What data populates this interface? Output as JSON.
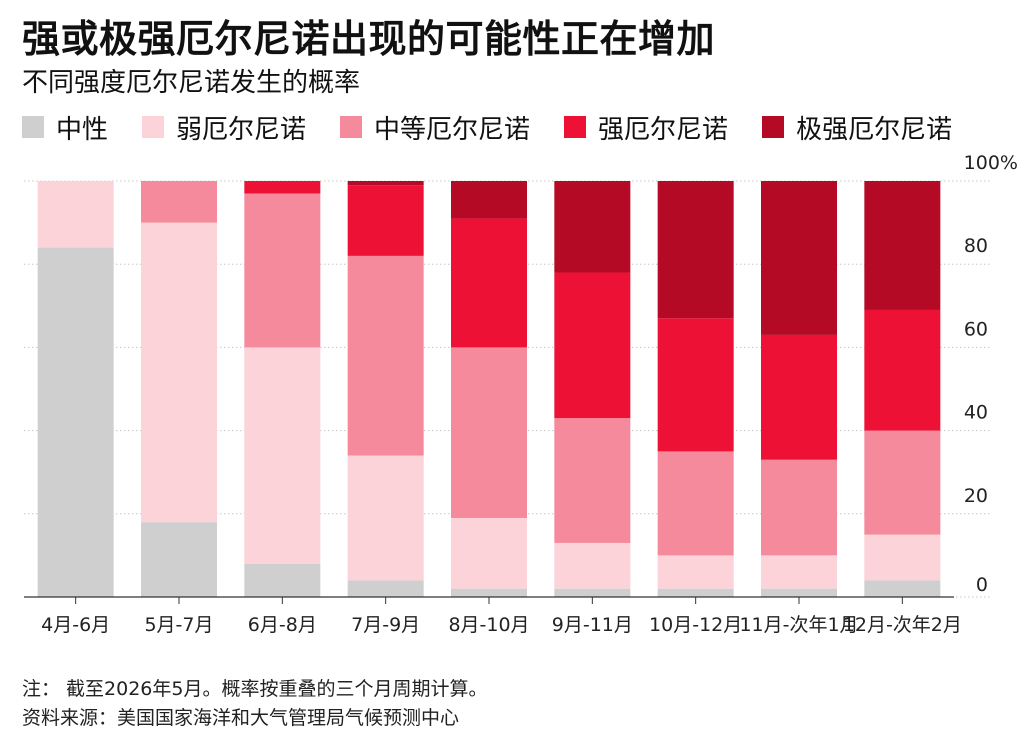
{
  "title": "强或极强厄尔尼诺出现的可能性正在增加",
  "subtitle": "不同强度厄尔尼诺发生的概率",
  "note": "注：  截至2026年5月。概率按重叠的三个月周期计算。",
  "source": "资料来源：美国国家海洋和大气管理局气候预测中心",
  "legend": [
    {
      "label": "中性",
      "color": "#cfcfcf"
    },
    {
      "label": "弱厄尔尼诺",
      "color": "#fbd3d9"
    },
    {
      "label": "中等厄尔尼诺",
      "color": "#f48a9b"
    },
    {
      "label": "强厄尔尼诺",
      "color": "#ee1136"
    },
    {
      "label": "极强厄尔尼诺",
      "color": "#b50a26"
    }
  ],
  "chart_data": {
    "type": "bar",
    "stacked": true,
    "categories": [
      "4月-6月",
      "5月-7月",
      "6月-8月",
      "7月-9月",
      "8月-10月",
      "9月-11月",
      "10月-12月",
      "11月-次年1月",
      "12月-次年2月"
    ],
    "series": [
      {
        "name": "中性",
        "color": "#cfcfcf",
        "values": [
          84,
          18,
          8,
          4,
          2,
          2,
          2,
          2,
          4
        ]
      },
      {
        "name": "弱厄尔尼诺",
        "color": "#fbd3d9",
        "values": [
          16,
          72,
          52,
          30,
          17,
          11,
          8,
          8,
          11
        ]
      },
      {
        "name": "中等厄尔尼诺",
        "color": "#f48a9b",
        "values": [
          0,
          10,
          37,
          48,
          41,
          30,
          25,
          23,
          25
        ]
      },
      {
        "name": "强厄尔尼诺",
        "color": "#ee1136",
        "values": [
          0,
          0,
          3,
          17,
          31,
          35,
          32,
          30,
          29
        ]
      },
      {
        "name": "极强厄尔尼诺",
        "color": "#b50a26",
        "values": [
          0,
          0,
          0,
          1,
          9,
          22,
          33,
          37,
          31
        ]
      }
    ],
    "yticks": [
      "0",
      "20",
      "40",
      "60",
      "80",
      "100%"
    ],
    "ylim": [
      0,
      100
    ],
    "grid": true,
    "axis_side": "right"
  }
}
